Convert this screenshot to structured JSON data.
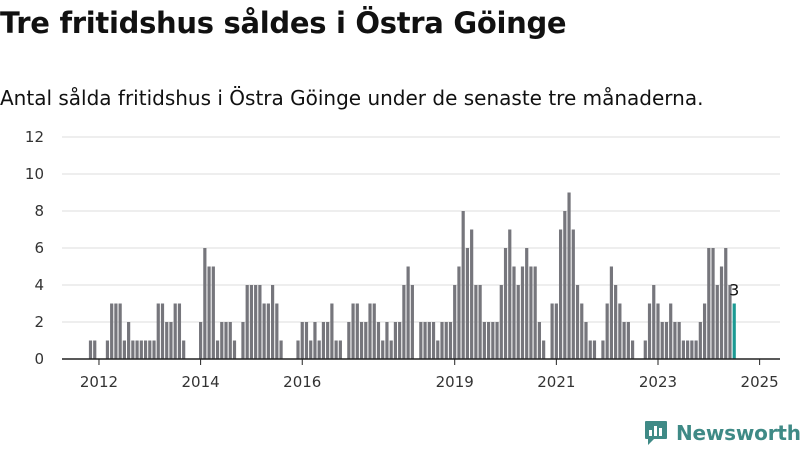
{
  "title": "Tre fritidshus såldes i Östra Göinge",
  "subtitle": "Antal sålda fritidshus i Östra Göinge under de senaste tre månaderna.",
  "logo_text": "Newsworthy",
  "colors": {
    "bar": "#76767c",
    "highlight": "#1b9a93",
    "grid": "#dcdcdc",
    "axis": "#222222",
    "logo": "#3f8a86"
  },
  "chart_data": {
    "type": "bar",
    "title": "",
    "xlabel": "",
    "ylabel": "",
    "ylim": [
      0,
      12
    ],
    "yticks": [
      0,
      2,
      4,
      6,
      8,
      10,
      12
    ],
    "grid": true,
    "x_start": "2011-11",
    "x_end": "2025-01",
    "x_tick_labels": [
      "2012",
      "2014",
      "2016",
      "2019",
      "2021",
      "2023",
      "2025"
    ],
    "highlight_label": "3",
    "values": [
      1,
      1,
      0,
      0,
      1,
      3,
      3,
      3,
      1,
      2,
      1,
      1,
      1,
      1,
      1,
      1,
      3,
      3,
      2,
      2,
      3,
      3,
      1,
      0,
      0,
      0,
      2,
      6,
      5,
      5,
      1,
      2,
      2,
      2,
      1,
      0,
      2,
      4,
      4,
      4,
      4,
      3,
      3,
      4,
      3,
      1,
      0,
      0,
      0,
      1,
      2,
      2,
      1,
      2,
      1,
      2,
      2,
      3,
      1,
      1,
      0,
      2,
      3,
      3,
      2,
      2,
      3,
      3,
      2,
      1,
      2,
      1,
      2,
      2,
      4,
      5,
      4,
      0,
      2,
      2,
      2,
      2,
      1,
      2,
      2,
      2,
      4,
      5,
      8,
      6,
      7,
      4,
      4,
      2,
      2,
      2,
      2,
      4,
      6,
      7,
      5,
      4,
      5,
      6,
      5,
      5,
      2,
      1,
      0,
      3,
      3,
      7,
      8,
      9,
      7,
      4,
      3,
      2,
      1,
      1,
      0,
      1,
      3,
      5,
      4,
      3,
      2,
      2,
      1,
      0,
      0,
      1,
      3,
      4,
      3,
      2,
      2,
      3,
      2,
      2,
      1,
      1,
      1,
      1,
      2,
      3,
      6,
      6,
      4,
      5,
      6,
      4,
      3
    ]
  }
}
